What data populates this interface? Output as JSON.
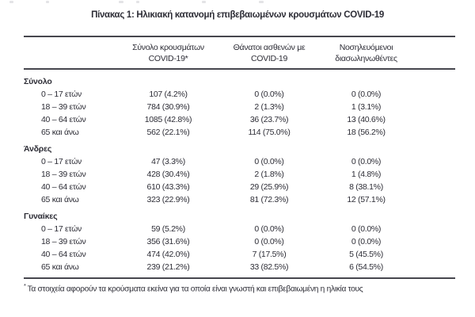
{
  "title": "Πίνακας 1: Ηλικιακή κατανομή επιβεβαιωμένων κρουσμάτων COVID-19",
  "header": {
    "cases": {
      "line1": "Σύνολο κρουσμάτων",
      "line2": "COVID-19*"
    },
    "deaths": {
      "line1": "Θάνατοι ασθενών με",
      "line2": "COVID-19"
    },
    "intubated": {
      "line1": "Νοσηλευόμενοι",
      "line2": "διασωληνωθέντες"
    }
  },
  "chart_data": {
    "type": "table",
    "columns": [
      "",
      "Σύνολο κρουσμάτων COVID-19*",
      "Θάνατοι ασθενών με COVID-19",
      "Νοσηλευόμενοι διασωληνωθέντες"
    ],
    "sections": [
      {
        "label": "Σύνολο",
        "rows": [
          {
            "age": "0 – 17 ετών",
            "cases": "107 (4.2%)",
            "deaths": "0 (0.0%)",
            "intubated": "0 (0.0%)"
          },
          {
            "age": "18 – 39 ετών",
            "cases": "784 (30.9%)",
            "deaths": "2 (1.3%)",
            "intubated": "1 (3.1%)"
          },
          {
            "age": "40 – 64 ετών",
            "cases": "1085 (42.8%)",
            "deaths": "36 (23.7%)",
            "intubated": "13 (40.6%)"
          },
          {
            "age": "65 και άνω",
            "cases": "562 (22.1%)",
            "deaths": "114 (75.0%)",
            "intubated": "18 (56.2%)"
          }
        ]
      },
      {
        "label": "Άνδρες",
        "rows": [
          {
            "age": "0 – 17 ετών",
            "cases": "47 (3.3%)",
            "deaths": "0 (0.0%)",
            "intubated": "0 (0.0%)"
          },
          {
            "age": "18 – 39 ετών",
            "cases": "428 (30.4%)",
            "deaths": "2 (1.8%)",
            "intubated": "1 (4.8%)"
          },
          {
            "age": "40 – 64 ετών",
            "cases": "610 (43.3%)",
            "deaths": "29 (25.9%)",
            "intubated": "8 (38.1%)"
          },
          {
            "age": "65 και άνω",
            "cases": "323 (22.9%)",
            "deaths": "81 (72.3%)",
            "intubated": "12 (57.1%)"
          }
        ]
      },
      {
        "label": "Γυναίκες",
        "rows": [
          {
            "age": "0 – 17 ετών",
            "cases": "59 (5.2%)",
            "deaths": "0 (0.0%)",
            "intubated": "0 (0.0%)"
          },
          {
            "age": "18 – 39 ετών",
            "cases": "356 (31.6%)",
            "deaths": "0 (0.0%)",
            "intubated": "0 (0.0%)"
          },
          {
            "age": "40 – 64 ετών",
            "cases": "474 (42.0%)",
            "deaths": "7 (17.5%)",
            "intubated": "5 (45.5%)"
          },
          {
            "age": "65 και άνω",
            "cases": "239 (21.2%)",
            "deaths": "33 (82.5%)",
            "intubated": "6 (54.5%)"
          }
        ]
      }
    ]
  },
  "footnote": {
    "marker": "*",
    "text": "Τα στοιχεία αφορούν τα κρούσματα εκείνα για τα οποία είναι γνωστή και επιβεβαιωμένη η ηλικία τους"
  },
  "colors": {
    "text": "#2d2d36",
    "rule": "#46464e",
    "background": "#ffffff"
  }
}
